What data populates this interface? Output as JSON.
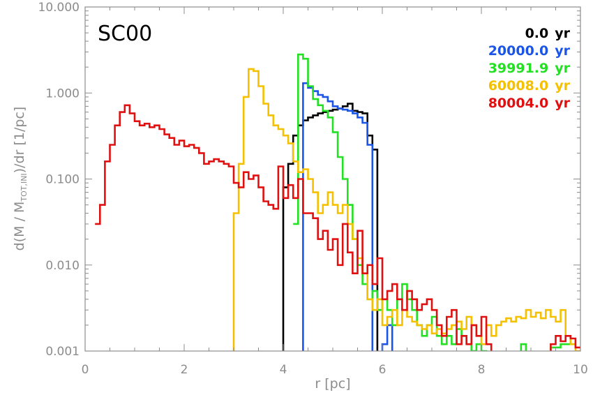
{
  "chart_data": {
    "type": "line",
    "title": "SC00",
    "xlabel": "r [pc]",
    "ylabel_parts": {
      "pre": "d(M / M",
      "sub": "TOT,INI",
      "post": ")/dr [1/pc]"
    },
    "xlim": [
      0,
      10
    ],
    "ylim": [
      0.001,
      10
    ],
    "yscale": "log",
    "x_ticks": [
      0,
      2,
      4,
      6,
      8,
      10
    ],
    "x_tick_labels": [
      "0",
      "2",
      "4",
      "6",
      "8",
      "10"
    ],
    "y_ticks": [
      0.001,
      0.01,
      0.1,
      1,
      10
    ],
    "y_tick_labels": [
      "0.001",
      "0.010",
      "0.100",
      "1.000",
      "10.000"
    ],
    "drawstyle": "steps-mid",
    "legend_position": "top-right",
    "unit_label": "yr",
    "series": [
      {
        "name": "0.0",
        "color": "#000000",
        "x": [
          3.95,
          4.05,
          4.15,
          4.25,
          4.35,
          4.45,
          4.55,
          4.65,
          4.75,
          4.85,
          4.95,
          5.05,
          5.15,
          5.25,
          5.35,
          5.45,
          5.55,
          5.65,
          5.75,
          5.85,
          5.95
        ],
        "y": [
          0.0008,
          0.08,
          0.15,
          0.32,
          0.42,
          0.48,
          0.52,
          0.55,
          0.58,
          0.6,
          0.62,
          0.64,
          0.66,
          0.7,
          0.75,
          0.62,
          0.6,
          0.58,
          0.32,
          0.22,
          0.0008
        ]
      },
      {
        "name": "20000.0",
        "color": "#1a55e8",
        "x": [
          4.35,
          4.45,
          4.55,
          4.65,
          4.75,
          4.85,
          4.95,
          5.05,
          5.15,
          5.25,
          5.35,
          5.45,
          5.55,
          5.65,
          5.75,
          5.85,
          5.95,
          6.05,
          6.15,
          6.25,
          6.35
        ],
        "y": [
          0.0008,
          1.3,
          1.15,
          1.05,
          0.95,
          0.9,
          0.8,
          0.7,
          0.66,
          0.64,
          0.62,
          0.58,
          0.52,
          0.45,
          0.25,
          0.0008,
          0.0008,
          0.0012,
          0.002,
          0.0008,
          0.0008
        ]
      },
      {
        "name": "39991.9",
        "color": "#22e022",
        "x": [
          4.25,
          4.35,
          4.45,
          4.55,
          4.65,
          4.75,
          4.85,
          4.95,
          5.05,
          5.15,
          5.25,
          5.35,
          5.45,
          5.55,
          5.65,
          5.75,
          5.85,
          5.95,
          6.05,
          6.15,
          6.25,
          6.35,
          6.45,
          6.55,
          6.65,
          6.75,
          6.85,
          6.95,
          7.05,
          7.15,
          7.25,
          7.35,
          7.45,
          7.55,
          7.65,
          7.75,
          7.85,
          7.95,
          8.05,
          8.15,
          8.25,
          8.35,
          8.45,
          8.55,
          8.65,
          8.75,
          8.85,
          8.95,
          9.05,
          9.15,
          9.25,
          9.35,
          9.45,
          9.55,
          9.65,
          9.75,
          9.85
        ],
        "y": [
          0.03,
          2.8,
          2.5,
          1.2,
          0.85,
          0.72,
          0.62,
          0.52,
          0.35,
          0.18,
          0.1,
          0.05,
          0.02,
          0.01,
          0.006,
          0.004,
          0.005,
          0.003,
          0.004,
          0.003,
          0.002,
          0.004,
          0.006,
          0.004,
          0.003,
          0.002,
          0.0015,
          0.002,
          0.0025,
          0.0015,
          0.0012,
          0.0015,
          0.0012,
          0.0018,
          0.0015,
          0.0012,
          0.001,
          0.0012,
          0.001,
          0.0009,
          0.0008,
          0.0009,
          0.0008,
          0.0008,
          0.0008,
          0.0009,
          0.0012,
          0.0008,
          0.0008,
          0.0008,
          0.0009,
          0.0008,
          0.0011,
          0.0011,
          0.0012,
          0.0012,
          0.0012
        ]
      },
      {
        "name": "60008.0",
        "color": "#f5c000",
        "x": [
          2.95,
          3.05,
          3.15,
          3.25,
          3.35,
          3.45,
          3.55,
          3.65,
          3.75,
          3.85,
          3.95,
          4.05,
          4.15,
          4.25,
          4.35,
          4.45,
          4.55,
          4.65,
          4.75,
          4.85,
          4.95,
          5.05,
          5.15,
          5.25,
          5.35,
          5.45,
          5.55,
          5.65,
          5.75,
          5.85,
          5.95,
          6.05,
          6.15,
          6.25,
          6.35,
          6.45,
          6.55,
          6.65,
          6.75,
          6.85,
          6.95,
          7.05,
          7.15,
          7.25,
          7.35,
          7.45,
          7.55,
          7.65,
          7.75,
          7.85,
          7.95,
          8.05,
          8.15,
          8.25,
          8.35,
          8.45,
          8.55,
          8.65,
          8.75,
          8.85,
          8.95,
          9.05,
          9.15,
          9.25,
          9.35,
          9.45,
          9.55,
          9.65,
          9.75,
          9.85,
          9.95
        ],
        "y": [
          0.0008,
          0.04,
          0.15,
          0.9,
          1.9,
          1.8,
          1.2,
          0.75,
          0.55,
          0.42,
          0.38,
          0.32,
          0.26,
          0.16,
          0.12,
          0.13,
          0.1,
          0.07,
          0.04,
          0.05,
          0.07,
          0.05,
          0.04,
          0.05,
          0.03,
          0.02,
          0.012,
          0.008,
          0.004,
          0.003,
          0.004,
          0.002,
          0.0025,
          0.003,
          0.002,
          0.003,
          0.0025,
          0.0022,
          0.002,
          0.0018,
          0.002,
          0.0016,
          0.0018,
          0.0016,
          0.0018,
          0.002,
          0.0022,
          0.0018,
          0.0025,
          0.002,
          0.0015,
          0.0012,
          0.002,
          0.0015,
          0.002,
          0.0022,
          0.0024,
          0.0022,
          0.0025,
          0.0024,
          0.003,
          0.0025,
          0.0028,
          0.0024,
          0.003,
          0.0025,
          0.0022,
          0.003,
          0.0015,
          0.0012,
          0.001
        ]
      },
      {
        "name": "80004.0",
        "color": "#e01010",
        "x": [
          0.25,
          0.35,
          0.45,
          0.55,
          0.65,
          0.75,
          0.85,
          0.95,
          1.05,
          1.15,
          1.25,
          1.35,
          1.45,
          1.55,
          1.65,
          1.75,
          1.85,
          1.95,
          2.05,
          2.15,
          2.25,
          2.35,
          2.45,
          2.55,
          2.65,
          2.75,
          2.85,
          2.95,
          3.05,
          3.15,
          3.25,
          3.35,
          3.45,
          3.55,
          3.65,
          3.75,
          3.85,
          3.95,
          4.05,
          4.15,
          4.25,
          4.35,
          4.45,
          4.55,
          4.65,
          4.75,
          4.85,
          4.95,
          5.05,
          5.15,
          5.25,
          5.35,
          5.45,
          5.55,
          5.65,
          5.75,
          5.85,
          5.95,
          6.05,
          6.15,
          6.25,
          6.35,
          6.45,
          6.55,
          6.65,
          6.75,
          6.85,
          6.95,
          7.05,
          7.15,
          7.25,
          7.35,
          7.45,
          7.55,
          7.65,
          7.75,
          7.85,
          7.95,
          8.05,
          8.15,
          8.25,
          8.35,
          8.45,
          8.55,
          8.65,
          8.75,
          8.85,
          8.95,
          9.05,
          9.15,
          9.25,
          9.35,
          9.45,
          9.55,
          9.65,
          9.75,
          9.85,
          9.95
        ],
        "y": [
          0.03,
          0.05,
          0.16,
          0.25,
          0.42,
          0.6,
          0.72,
          0.58,
          0.47,
          0.42,
          0.44,
          0.4,
          0.42,
          0.38,
          0.33,
          0.3,
          0.25,
          0.28,
          0.24,
          0.25,
          0.23,
          0.2,
          0.15,
          0.16,
          0.17,
          0.16,
          0.15,
          0.14,
          0.09,
          0.08,
          0.12,
          0.1,
          0.11,
          0.08,
          0.055,
          0.05,
          0.045,
          0.14,
          0.06,
          0.085,
          0.06,
          0.1,
          0.04,
          0.04,
          0.035,
          0.02,
          0.025,
          0.015,
          0.02,
          0.01,
          0.03,
          0.014,
          0.008,
          0.025,
          0.008,
          0.01,
          0.006,
          0.012,
          0.004,
          0.005,
          0.006,
          0.004,
          0.003,
          0.005,
          0.004,
          0.003,
          0.0035,
          0.004,
          0.003,
          0.002,
          0.0015,
          0.0025,
          0.003,
          0.0012,
          0.0015,
          0.0012,
          0.002,
          0.0015,
          0.0025,
          0.0012,
          0.0008,
          0.0008,
          0.0008,
          0.0008,
          0.0008,
          0.0008,
          0.0008,
          0.0008,
          0.0008,
          0.0008,
          0.0008,
          0.0008,
          0.0012,
          0.0015,
          0.0013,
          0.0015,
          0.0014,
          0.0011
        ]
      }
    ]
  }
}
